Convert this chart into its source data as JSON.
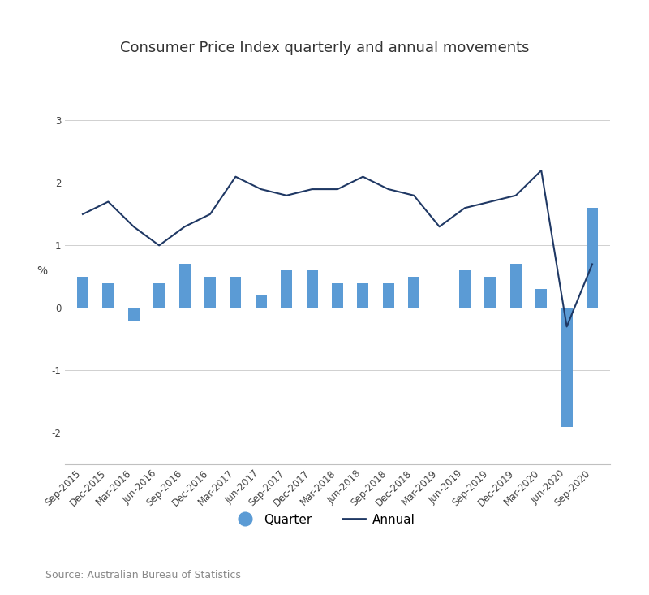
{
  "title": "Consumer Price Index quarterly and annual movements",
  "ylabel": "%",
  "source": "Source: Australian Bureau of Statistics",
  "background_color": "#ffffff",
  "bar_color": "#5b9bd5",
  "line_color": "#1f3864",
  "categories": [
    "Sep-2015",
    "Dec-2015",
    "Mar-2016",
    "Jun-2016",
    "Sep-2016",
    "Dec-2016",
    "Mar-2017",
    "Jun-2017",
    "Sep-2017",
    "Dec-2017",
    "Mar-2018",
    "Jun-2018",
    "Sep-2018",
    "Dec-2018",
    "Mar-2019",
    "Jun-2019",
    "Sep-2019",
    "Dec-2019",
    "Mar-2020",
    "Jun-2020",
    "Sep-2020"
  ],
  "quarter_values": [
    0.5,
    0.4,
    -0.2,
    0.4,
    0.7,
    0.5,
    0.5,
    0.2,
    0.6,
    0.6,
    0.4,
    0.4,
    0.4,
    0.5,
    0.0,
    0.6,
    0.5,
    0.7,
    0.3,
    -1.9,
    1.6
  ],
  "annual_values": [
    1.5,
    1.7,
    1.3,
    1.0,
    1.3,
    1.5,
    2.1,
    1.9,
    1.8,
    1.9,
    1.9,
    2.1,
    1.9,
    1.8,
    1.3,
    1.6,
    1.7,
    1.8,
    2.2,
    -0.3,
    0.7
  ],
  "ylim": [
    -2.5,
    3.5
  ],
  "yticks": [
    -2,
    -1,
    0,
    1,
    2,
    3
  ],
  "legend_quarter": "Quarter",
  "legend_annual": "Annual",
  "title_fontsize": 13,
  "axis_fontsize": 10,
  "tick_fontsize": 8.5,
  "source_fontsize": 9,
  "grid_color": "#d0d0d0",
  "spine_color": "#c0c0c0"
}
